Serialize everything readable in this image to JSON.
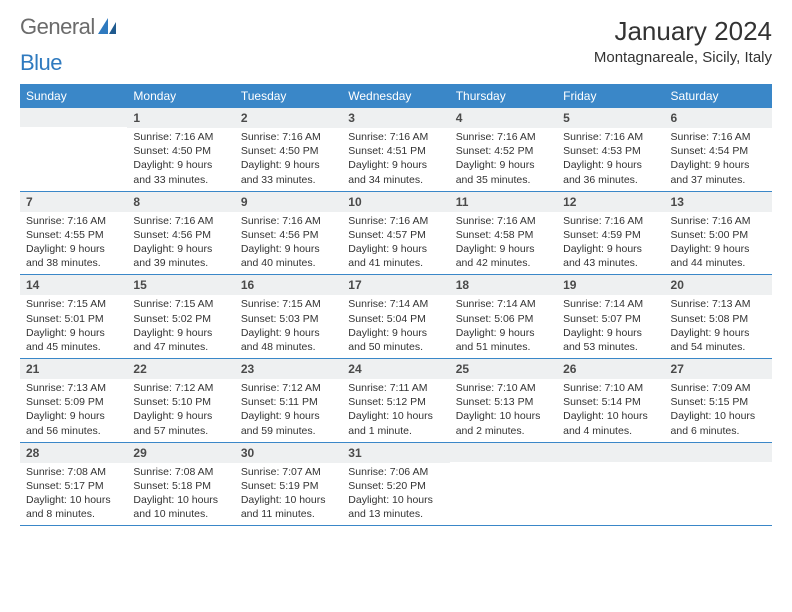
{
  "brand": {
    "part1": "General",
    "part2": "Blue"
  },
  "title": "January 2024",
  "location": "Montagnareale, Sicily, Italy",
  "colors": {
    "header_bg": "#3a87c8",
    "header_text": "#ffffff",
    "daynum_bg": "#eef0f1",
    "row_border": "#3a87c8",
    "text": "#333333",
    "logo_gray": "#6b6b6b",
    "logo_blue": "#2f7abf"
  },
  "typography": {
    "title_fontsize": 26,
    "location_fontsize": 15,
    "weekday_fontsize": 12,
    "daynum_fontsize": 12,
    "body_fontsize": 10.5
  },
  "weekdays": [
    "Sunday",
    "Monday",
    "Tuesday",
    "Wednesday",
    "Thursday",
    "Friday",
    "Saturday"
  ],
  "weeks": [
    [
      {
        "empty": true
      },
      {
        "day": "1",
        "sunrise": "Sunrise: 7:16 AM",
        "sunset": "Sunset: 4:50 PM",
        "daylight": "Daylight: 9 hours and 33 minutes."
      },
      {
        "day": "2",
        "sunrise": "Sunrise: 7:16 AM",
        "sunset": "Sunset: 4:50 PM",
        "daylight": "Daylight: 9 hours and 33 minutes."
      },
      {
        "day": "3",
        "sunrise": "Sunrise: 7:16 AM",
        "sunset": "Sunset: 4:51 PM",
        "daylight": "Daylight: 9 hours and 34 minutes."
      },
      {
        "day": "4",
        "sunrise": "Sunrise: 7:16 AM",
        "sunset": "Sunset: 4:52 PM",
        "daylight": "Daylight: 9 hours and 35 minutes."
      },
      {
        "day": "5",
        "sunrise": "Sunrise: 7:16 AM",
        "sunset": "Sunset: 4:53 PM",
        "daylight": "Daylight: 9 hours and 36 minutes."
      },
      {
        "day": "6",
        "sunrise": "Sunrise: 7:16 AM",
        "sunset": "Sunset: 4:54 PM",
        "daylight": "Daylight: 9 hours and 37 minutes."
      }
    ],
    [
      {
        "day": "7",
        "sunrise": "Sunrise: 7:16 AM",
        "sunset": "Sunset: 4:55 PM",
        "daylight": "Daylight: 9 hours and 38 minutes."
      },
      {
        "day": "8",
        "sunrise": "Sunrise: 7:16 AM",
        "sunset": "Sunset: 4:56 PM",
        "daylight": "Daylight: 9 hours and 39 minutes."
      },
      {
        "day": "9",
        "sunrise": "Sunrise: 7:16 AM",
        "sunset": "Sunset: 4:56 PM",
        "daylight": "Daylight: 9 hours and 40 minutes."
      },
      {
        "day": "10",
        "sunrise": "Sunrise: 7:16 AM",
        "sunset": "Sunset: 4:57 PM",
        "daylight": "Daylight: 9 hours and 41 minutes."
      },
      {
        "day": "11",
        "sunrise": "Sunrise: 7:16 AM",
        "sunset": "Sunset: 4:58 PM",
        "daylight": "Daylight: 9 hours and 42 minutes."
      },
      {
        "day": "12",
        "sunrise": "Sunrise: 7:16 AM",
        "sunset": "Sunset: 4:59 PM",
        "daylight": "Daylight: 9 hours and 43 minutes."
      },
      {
        "day": "13",
        "sunrise": "Sunrise: 7:16 AM",
        "sunset": "Sunset: 5:00 PM",
        "daylight": "Daylight: 9 hours and 44 minutes."
      }
    ],
    [
      {
        "day": "14",
        "sunrise": "Sunrise: 7:15 AM",
        "sunset": "Sunset: 5:01 PM",
        "daylight": "Daylight: 9 hours and 45 minutes."
      },
      {
        "day": "15",
        "sunrise": "Sunrise: 7:15 AM",
        "sunset": "Sunset: 5:02 PM",
        "daylight": "Daylight: 9 hours and 47 minutes."
      },
      {
        "day": "16",
        "sunrise": "Sunrise: 7:15 AM",
        "sunset": "Sunset: 5:03 PM",
        "daylight": "Daylight: 9 hours and 48 minutes."
      },
      {
        "day": "17",
        "sunrise": "Sunrise: 7:14 AM",
        "sunset": "Sunset: 5:04 PM",
        "daylight": "Daylight: 9 hours and 50 minutes."
      },
      {
        "day": "18",
        "sunrise": "Sunrise: 7:14 AM",
        "sunset": "Sunset: 5:06 PM",
        "daylight": "Daylight: 9 hours and 51 minutes."
      },
      {
        "day": "19",
        "sunrise": "Sunrise: 7:14 AM",
        "sunset": "Sunset: 5:07 PM",
        "daylight": "Daylight: 9 hours and 53 minutes."
      },
      {
        "day": "20",
        "sunrise": "Sunrise: 7:13 AM",
        "sunset": "Sunset: 5:08 PM",
        "daylight": "Daylight: 9 hours and 54 minutes."
      }
    ],
    [
      {
        "day": "21",
        "sunrise": "Sunrise: 7:13 AM",
        "sunset": "Sunset: 5:09 PM",
        "daylight": "Daylight: 9 hours and 56 minutes."
      },
      {
        "day": "22",
        "sunrise": "Sunrise: 7:12 AM",
        "sunset": "Sunset: 5:10 PM",
        "daylight": "Daylight: 9 hours and 57 minutes."
      },
      {
        "day": "23",
        "sunrise": "Sunrise: 7:12 AM",
        "sunset": "Sunset: 5:11 PM",
        "daylight": "Daylight: 9 hours and 59 minutes."
      },
      {
        "day": "24",
        "sunrise": "Sunrise: 7:11 AM",
        "sunset": "Sunset: 5:12 PM",
        "daylight": "Daylight: 10 hours and 1 minute."
      },
      {
        "day": "25",
        "sunrise": "Sunrise: 7:10 AM",
        "sunset": "Sunset: 5:13 PM",
        "daylight": "Daylight: 10 hours and 2 minutes."
      },
      {
        "day": "26",
        "sunrise": "Sunrise: 7:10 AM",
        "sunset": "Sunset: 5:14 PM",
        "daylight": "Daylight: 10 hours and 4 minutes."
      },
      {
        "day": "27",
        "sunrise": "Sunrise: 7:09 AM",
        "sunset": "Sunset: 5:15 PM",
        "daylight": "Daylight: 10 hours and 6 minutes."
      }
    ],
    [
      {
        "day": "28",
        "sunrise": "Sunrise: 7:08 AM",
        "sunset": "Sunset: 5:17 PM",
        "daylight": "Daylight: 10 hours and 8 minutes."
      },
      {
        "day": "29",
        "sunrise": "Sunrise: 7:08 AM",
        "sunset": "Sunset: 5:18 PM",
        "daylight": "Daylight: 10 hours and 10 minutes."
      },
      {
        "day": "30",
        "sunrise": "Sunrise: 7:07 AM",
        "sunset": "Sunset: 5:19 PM",
        "daylight": "Daylight: 10 hours and 11 minutes."
      },
      {
        "day": "31",
        "sunrise": "Sunrise: 7:06 AM",
        "sunset": "Sunset: 5:20 PM",
        "daylight": "Daylight: 10 hours and 13 minutes."
      },
      {
        "empty": true
      },
      {
        "empty": true
      },
      {
        "empty": true
      }
    ]
  ]
}
